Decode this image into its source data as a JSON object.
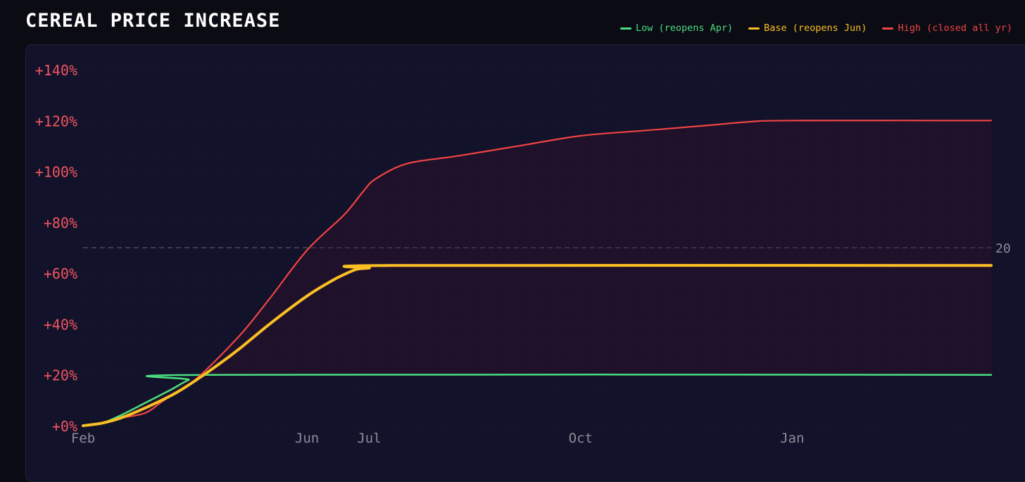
{
  "title": "CEREAL PRICE INCREASE",
  "colors": {
    "low": "#4ade80",
    "base": "#fbbf24",
    "high": "#ef4444",
    "tick_y": "#f05560",
    "tick_x": "#8b8b99",
    "reference": "#4a4a62"
  },
  "chart_data": {
    "type": "line",
    "title": "CEREAL PRICE INCREASE",
    "xlabel": "",
    "ylabel": "",
    "x_ticks": [
      "Feb",
      "Jun",
      "Jul",
      "Oct",
      "Jan"
    ],
    "x_tick_positions": [
      0,
      3.6,
      4.6,
      8,
      11.4
    ],
    "x_range": [
      0,
      14.6
    ],
    "y_ticks": [
      "+0%",
      "+20%",
      "+40%",
      "+60%",
      "+80%",
      "+100%",
      "+120%",
      "+140%"
    ],
    "y_tick_values": [
      0,
      20,
      40,
      60,
      80,
      100,
      120,
      140
    ],
    "ylim": [
      0,
      140
    ],
    "grid": true,
    "legend_position": "top-right",
    "reference_line": {
      "value": 70,
      "label": "20"
    },
    "series": [
      {
        "name": "Low (reopens Apr)",
        "color_key": "low",
        "points": [
          [
            0,
            0
          ],
          [
            0.3,
            1
          ],
          [
            0.6,
            4
          ],
          [
            1.0,
            9
          ],
          [
            1.4,
            14
          ],
          [
            1.7,
            18
          ],
          [
            2.0,
            20
          ],
          [
            14.6,
            20
          ]
        ]
      },
      {
        "name": "Base (reopens Jun)",
        "color_key": "base",
        "points": [
          [
            0,
            0
          ],
          [
            0.3,
            1
          ],
          [
            0.6,
            3
          ],
          [
            1.0,
            7
          ],
          [
            1.5,
            13
          ],
          [
            2.0,
            21
          ],
          [
            2.5,
            30
          ],
          [
            3.0,
            40
          ],
          [
            3.6,
            51
          ],
          [
            4.0,
            57
          ],
          [
            4.2,
            59.5
          ],
          [
            4.4,
            61.5
          ],
          [
            4.6,
            62
          ],
          [
            5.0,
            63
          ],
          [
            14.6,
            63
          ]
        ]
      },
      {
        "name": "High (closed all yr)",
        "color_key": "high",
        "points": [
          [
            0,
            0
          ],
          [
            0.3,
            1
          ],
          [
            0.6,
            3
          ],
          [
            1.0,
            5
          ],
          [
            1.3,
            10
          ],
          [
            1.8,
            18
          ],
          [
            2.5,
            35
          ],
          [
            3.0,
            50
          ],
          [
            3.6,
            69
          ],
          [
            4.2,
            83
          ],
          [
            4.5,
            92
          ],
          [
            4.7,
            97
          ],
          [
            5.2,
            103
          ],
          [
            6.0,
            106
          ],
          [
            7.0,
            110
          ],
          [
            8.0,
            114
          ],
          [
            9.0,
            116
          ],
          [
            10.0,
            118
          ],
          [
            10.7,
            119.5
          ],
          [
            11.4,
            120
          ],
          [
            14.6,
            120
          ]
        ]
      }
    ]
  }
}
